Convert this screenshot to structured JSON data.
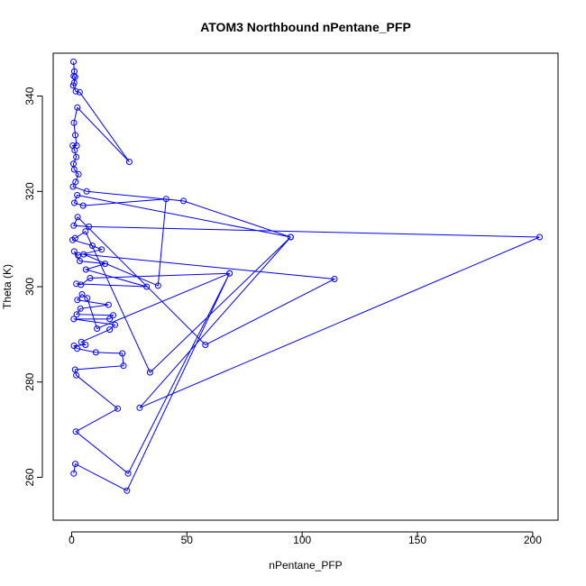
{
  "chart_data": {
    "type": "line",
    "title": "ATOM3 Northbound nPentane_PFP",
    "xlabel": "nPentane_PFP",
    "ylabel": "Theta (K)",
    "xlim": [
      -8,
      211
    ],
    "ylim": [
      251,
      349
    ],
    "xticks": [
      0,
      50,
      100,
      150,
      200
    ],
    "yticks": [
      260,
      280,
      300,
      320,
      340
    ],
    "grid": false,
    "legend": "none",
    "series_color": "#0000ff",
    "marker": "open-circle",
    "series": [
      {
        "points": [
          [
            0.8,
            347.2
          ],
          [
            1.2,
            345.2
          ],
          [
            0.9,
            344.2
          ],
          [
            1.5,
            344.0
          ],
          [
            1.1,
            342.8
          ],
          [
            0.7,
            342.2
          ],
          [
            1.8,
            341.0
          ],
          [
            3.5,
            340.8
          ],
          [
            25.0,
            326.2
          ],
          [
            2.5,
            337.6
          ],
          [
            1.0,
            334.4
          ],
          [
            1.6,
            331.8
          ],
          [
            2.2,
            329.6
          ],
          [
            0.5,
            329.6
          ],
          [
            1.3,
            328.6
          ],
          [
            2.0,
            327.2
          ],
          [
            0.8,
            325.8
          ],
          [
            1.1,
            324.6
          ],
          [
            3.0,
            323.6
          ],
          [
            1.7,
            322.0
          ],
          [
            0.6,
            321.0
          ],
          [
            6.5,
            320.0
          ],
          [
            48.5,
            318.0
          ],
          [
            95.0,
            310.4
          ],
          [
            2.4,
            319.2
          ],
          [
            1.2,
            317.6
          ],
          [
            5.0,
            317.0
          ],
          [
            41.0,
            318.4
          ],
          [
            37.5,
            300.2
          ],
          [
            5.2,
            306.8
          ],
          [
            114.0,
            301.6
          ],
          [
            58.0,
            287.8
          ],
          [
            2.6,
            314.6
          ],
          [
            0.9,
            312.8
          ],
          [
            7.5,
            312.6
          ],
          [
            203.0,
            310.4
          ],
          [
            29.5,
            274.6
          ],
          [
            95.0,
            310.4
          ],
          [
            34.0,
            282.0
          ],
          [
            6.0,
            311.6
          ],
          [
            1.5,
            310.2
          ],
          [
            0.4,
            309.8
          ],
          [
            9.0,
            308.6
          ],
          [
            13.0,
            307.8
          ],
          [
            2.8,
            306.6
          ],
          [
            1.1,
            307.4
          ],
          [
            3.5,
            305.4
          ],
          [
            14.5,
            304.8
          ],
          [
            6.2,
            303.6
          ],
          [
            32.5,
            300.0
          ],
          [
            2.0,
            300.6
          ],
          [
            4.0,
            300.4
          ],
          [
            8.0,
            301.8
          ],
          [
            68.5,
            302.8
          ],
          [
            11.0,
            291.2
          ],
          [
            6.8,
            297.6
          ],
          [
            4.5,
            298.4
          ],
          [
            2.5,
            297.2
          ],
          [
            16.0,
            296.2
          ],
          [
            3.8,
            295.4
          ],
          [
            2.2,
            294.2
          ],
          [
            18.0,
            294.0
          ],
          [
            16.5,
            293.2
          ],
          [
            0.9,
            293.2
          ],
          [
            18.8,
            292.0
          ],
          [
            16.5,
            291.0
          ],
          [
            4.2,
            288.4
          ],
          [
            6.0,
            287.8
          ],
          [
            1.0,
            287.6
          ],
          [
            2.4,
            287.0
          ],
          [
            10.5,
            286.2
          ],
          [
            22.0,
            286.0
          ],
          [
            22.5,
            283.4
          ],
          [
            1.5,
            282.6
          ],
          [
            2.0,
            281.4
          ],
          [
            20.0,
            274.4
          ],
          [
            1.8,
            269.6
          ],
          [
            24.5,
            260.8
          ],
          [
            68.5,
            302.8
          ],
          [
            24.0,
            257.2
          ],
          [
            1.6,
            262.8
          ],
          [
            0.9,
            260.8
          ]
        ]
      }
    ]
  }
}
